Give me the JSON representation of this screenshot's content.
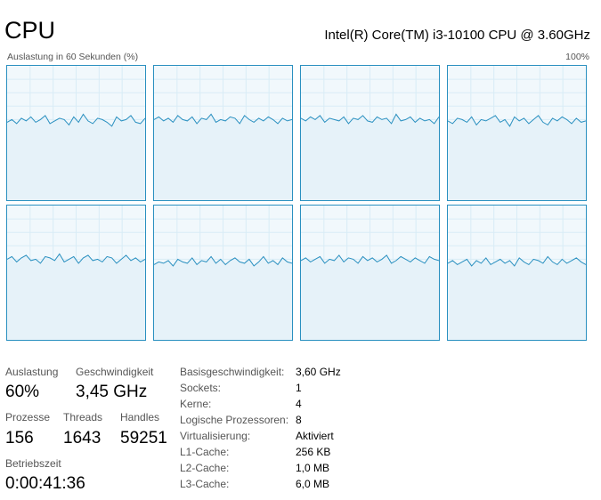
{
  "header": {
    "title": "CPU",
    "model": "Intel(R) Core(TM) i3-10100 CPU @ 3.60GHz"
  },
  "graph_area": {
    "left_label": "Auslastung in 60 Sekunden (%)",
    "right_label": "100%",
    "line_color": "#2a90c0",
    "fill_color": "#f1f8fc",
    "grid_color": "#d9ecf6"
  },
  "chart_data": {
    "type": "line",
    "ylim": [
      0,
      100
    ],
    "series": [
      {
        "values": [
          58,
          60,
          57,
          61,
          59,
          62,
          58,
          60,
          63,
          57,
          59,
          61,
          60,
          56,
          62,
          58,
          64,
          59,
          57,
          61,
          60,
          58,
          55,
          62,
          59,
          60,
          63,
          58,
          57,
          61
        ]
      },
      {
        "values": [
          60,
          62,
          59,
          61,
          58,
          63,
          60,
          59,
          62,
          57,
          61,
          60,
          64,
          58,
          60,
          59,
          62,
          61,
          57,
          63,
          60,
          58,
          61,
          59,
          62,
          60,
          57,
          61,
          59,
          60
        ]
      },
      {
        "values": [
          61,
          59,
          62,
          60,
          63,
          58,
          61,
          60,
          59,
          62,
          57,
          61,
          60,
          63,
          59,
          58,
          62,
          60,
          61,
          57,
          64,
          59,
          60,
          62,
          58,
          61,
          59,
          60,
          57,
          62
        ]
      },
      {
        "values": [
          59,
          57,
          61,
          60,
          58,
          62,
          56,
          60,
          59,
          61,
          63,
          58,
          60,
          55,
          62,
          59,
          61,
          57,
          60,
          63,
          58,
          56,
          61,
          59,
          62,
          60,
          57,
          61,
          58,
          59
        ]
      },
      {
        "values": [
          60,
          62,
          58,
          61,
          63,
          59,
          60,
          57,
          62,
          61,
          59,
          64,
          58,
          60,
          62,
          57,
          61,
          63,
          59,
          60,
          58,
          62,
          61,
          57,
          60,
          63,
          59,
          61,
          58,
          60
        ]
      },
      {
        "values": [
          56,
          58,
          57,
          59,
          55,
          60,
          58,
          57,
          61,
          56,
          59,
          58,
          62,
          57,
          60,
          56,
          59,
          61,
          58,
          57,
          60,
          55,
          58,
          62,
          57,
          59,
          56,
          61,
          58,
          57
        ]
      },
      {
        "values": [
          59,
          61,
          58,
          60,
          62,
          57,
          60,
          59,
          63,
          58,
          61,
          60,
          57,
          62,
          59,
          61,
          58,
          60,
          63,
          57,
          59,
          62,
          60,
          58,
          61,
          59,
          57,
          62,
          60,
          59
        ]
      },
      {
        "values": [
          57,
          59,
          56,
          58,
          60,
          55,
          59,
          57,
          61,
          56,
          58,
          60,
          57,
          59,
          55,
          61,
          58,
          56,
          60,
          59,
          57,
          62,
          58,
          56,
          60,
          57,
          59,
          61,
          58,
          56
        ]
      }
    ]
  },
  "stats": {
    "utilization": {
      "label": "Auslastung",
      "value": "60%"
    },
    "speed": {
      "label": "Geschwindigkeit",
      "value": "3,45 GHz"
    },
    "processes": {
      "label": "Prozesse",
      "value": "156"
    },
    "threads": {
      "label": "Threads",
      "value": "1643"
    },
    "handles": {
      "label": "Handles",
      "value": "59251"
    },
    "uptime": {
      "label": "Betriebszeit",
      "value": "0:00:41:36"
    }
  },
  "specs": [
    {
      "label": "Basisgeschwindigkeit:",
      "value": "3,60 GHz"
    },
    {
      "label": "Sockets:",
      "value": "1"
    },
    {
      "label": "Kerne:",
      "value": "4"
    },
    {
      "label": "Logische Prozessoren:",
      "value": "8"
    },
    {
      "label": "Virtualisierung:",
      "value": "Aktiviert"
    },
    {
      "label": "L1-Cache:",
      "value": "256 KB"
    },
    {
      "label": "L2-Cache:",
      "value": "1,0 MB"
    },
    {
      "label": "L3-Cache:",
      "value": "6,0 MB"
    }
  ]
}
